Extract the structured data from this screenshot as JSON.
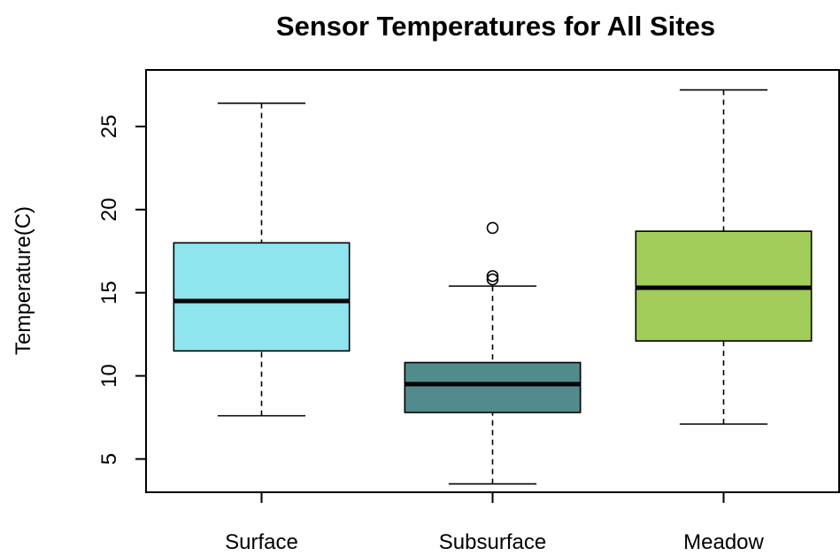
{
  "chart_data": {
    "type": "box",
    "title": "Sensor Temperatures for All Sites",
    "xlabel": "",
    "ylabel": "Temperature(C)",
    "ylim": [
      3.0,
      28.4
    ],
    "yticks": [
      5,
      10,
      15,
      20,
      25
    ],
    "grid": false,
    "categories": [
      "Surface",
      "Subsurface",
      "Meadow"
    ],
    "series": [
      {
        "category": "Surface",
        "color": "#8ee5ee",
        "whisker_low": 7.6,
        "q1": 11.5,
        "median": 14.5,
        "q3": 18.0,
        "whisker_high": 26.4,
        "outliers": []
      },
      {
        "category": "Subsurface",
        "color": "#528b8b",
        "whisker_low": 3.5,
        "q1": 7.8,
        "median": 9.5,
        "q3": 10.8,
        "whisker_high": 15.4,
        "outliers": [
          15.8,
          16.0,
          18.9
        ]
      },
      {
        "category": "Meadow",
        "color": "#a2cd5a",
        "whisker_low": 7.1,
        "q1": 12.1,
        "median": 15.3,
        "q3": 18.7,
        "whisker_high": 27.2,
        "outliers": []
      }
    ]
  }
}
